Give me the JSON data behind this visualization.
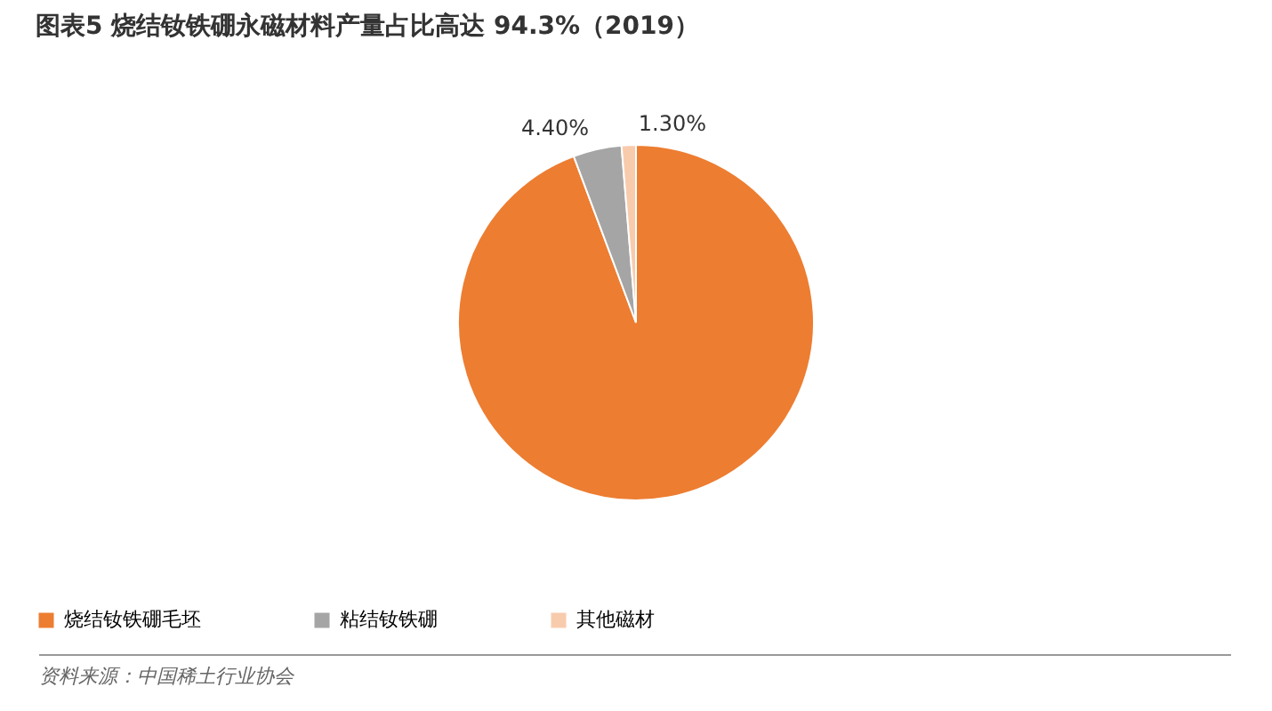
{
  "chart_data": {
    "type": "pie",
    "title": "图表5    烧结钕铁硼永磁材料产量占比高达 94.3%（2019）",
    "categories": [
      "烧结钕铁硼毛坯",
      "粘结钕铁硼",
      "其他磁材"
    ],
    "values": [
      94.3,
      4.4,
      1.3
    ],
    "colors": [
      "#ed7d31",
      "#a5a5a5",
      "#f8cbad"
    ],
    "value_labels": [
      null,
      "4.40%",
      "1.30%"
    ],
    "legend": "bottom",
    "annotations": [
      "资料来源：中国稀土行业协会"
    ]
  }
}
